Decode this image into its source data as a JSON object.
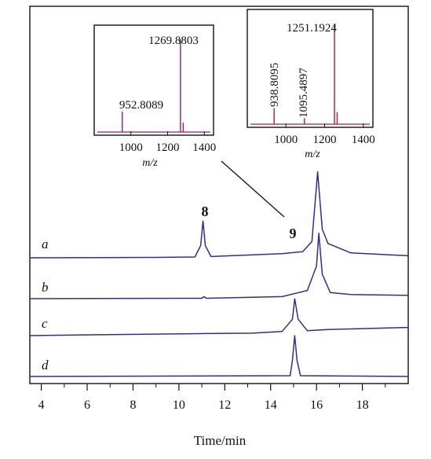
{
  "chart_data": [
    {
      "type": "line",
      "title": "",
      "xlabel": "Time/min",
      "ylabel": "",
      "xlim": [
        3.5,
        20
      ],
      "x_ticks": [
        4,
        6,
        8,
        10,
        12,
        14,
        16,
        18
      ],
      "grid": false,
      "series": [
        {
          "name": "a",
          "points": [
            [
              3.5,
              0
            ],
            [
              9.0,
              0.01
            ],
            [
              10.7,
              0.02
            ],
            [
              10.95,
              0.3
            ],
            [
              11.05,
              0.9
            ],
            [
              11.15,
              0.3
            ],
            [
              11.4,
              0.03
            ],
            [
              14.5,
              0.1
            ],
            [
              15.4,
              0.15
            ],
            [
              15.8,
              0.4
            ],
            [
              16.05,
              2.1
            ],
            [
              16.25,
              0.7
            ],
            [
              16.5,
              0.35
            ],
            [
              17.5,
              0.12
            ],
            [
              20,
              0.05
            ]
          ]
        },
        {
          "name": "b",
          "points": [
            [
              3.5,
              0
            ],
            [
              11.0,
              0.01
            ],
            [
              11.1,
              0.05
            ],
            [
              11.2,
              0.01
            ],
            [
              14.5,
              0.05
            ],
            [
              15.6,
              0.2
            ],
            [
              16.0,
              0.8
            ],
            [
              16.1,
              1.6
            ],
            [
              16.25,
              0.6
            ],
            [
              16.6,
              0.15
            ],
            [
              17.5,
              0.1
            ],
            [
              20,
              0.08
            ]
          ]
        },
        {
          "name": "c",
          "points": [
            [
              3.5,
              0
            ],
            [
              6.2,
              0.02
            ],
            [
              11.1,
              0.05
            ],
            [
              13.2,
              0.06
            ],
            [
              14.5,
              0.1
            ],
            [
              14.95,
              0.4
            ],
            [
              15.05,
              0.9
            ],
            [
              15.2,
              0.4
            ],
            [
              15.6,
              0.12
            ],
            [
              16.5,
              0.15
            ],
            [
              20,
              0.2
            ]
          ]
        },
        {
          "name": "d",
          "points": [
            [
              3.5,
              0
            ],
            [
              14.85,
              0.02
            ],
            [
              14.95,
              0.4
            ],
            [
              15.05,
              1.0
            ],
            [
              15.15,
              0.4
            ],
            [
              15.3,
              0.02
            ],
            [
              20,
              0
            ]
          ]
        }
      ],
      "peak_labels": [
        "8",
        "9"
      ]
    },
    {
      "type": "bar",
      "title": "",
      "xlabel": "m/z",
      "xlim": [
        800,
        1450
      ],
      "x_ticks": [
        1000,
        1200,
        1400
      ],
      "color": "#8b1a8b",
      "peaks": [
        {
          "mz": 952.8089,
          "intensity": 0.22,
          "label": "952.8089"
        },
        {
          "mz": 1269.8803,
          "intensity": 1.0,
          "label": "1269.8803"
        },
        {
          "mz": 1285,
          "intensity": 0.1,
          "label": ""
        }
      ]
    },
    {
      "type": "bar",
      "title": "",
      "xlabel": "m/z",
      "xlim": [
        800,
        1450
      ],
      "x_ticks": [
        1000,
        1200,
        1400
      ],
      "color": "#b0202a",
      "peaks": [
        {
          "mz": 938.8095,
          "intensity": 0.16,
          "label": "938.8095"
        },
        {
          "mz": 1095.4897,
          "intensity": 0.06,
          "label": "1095.4897"
        },
        {
          "mz": 1251.1924,
          "intensity": 1.0,
          "label": "1251.1924"
        },
        {
          "mz": 1265,
          "intensity": 0.12,
          "label": ""
        }
      ]
    }
  ],
  "colors": {
    "trace": "#2b2f8f",
    "frame": "#111111",
    "background": "#ffffff"
  }
}
